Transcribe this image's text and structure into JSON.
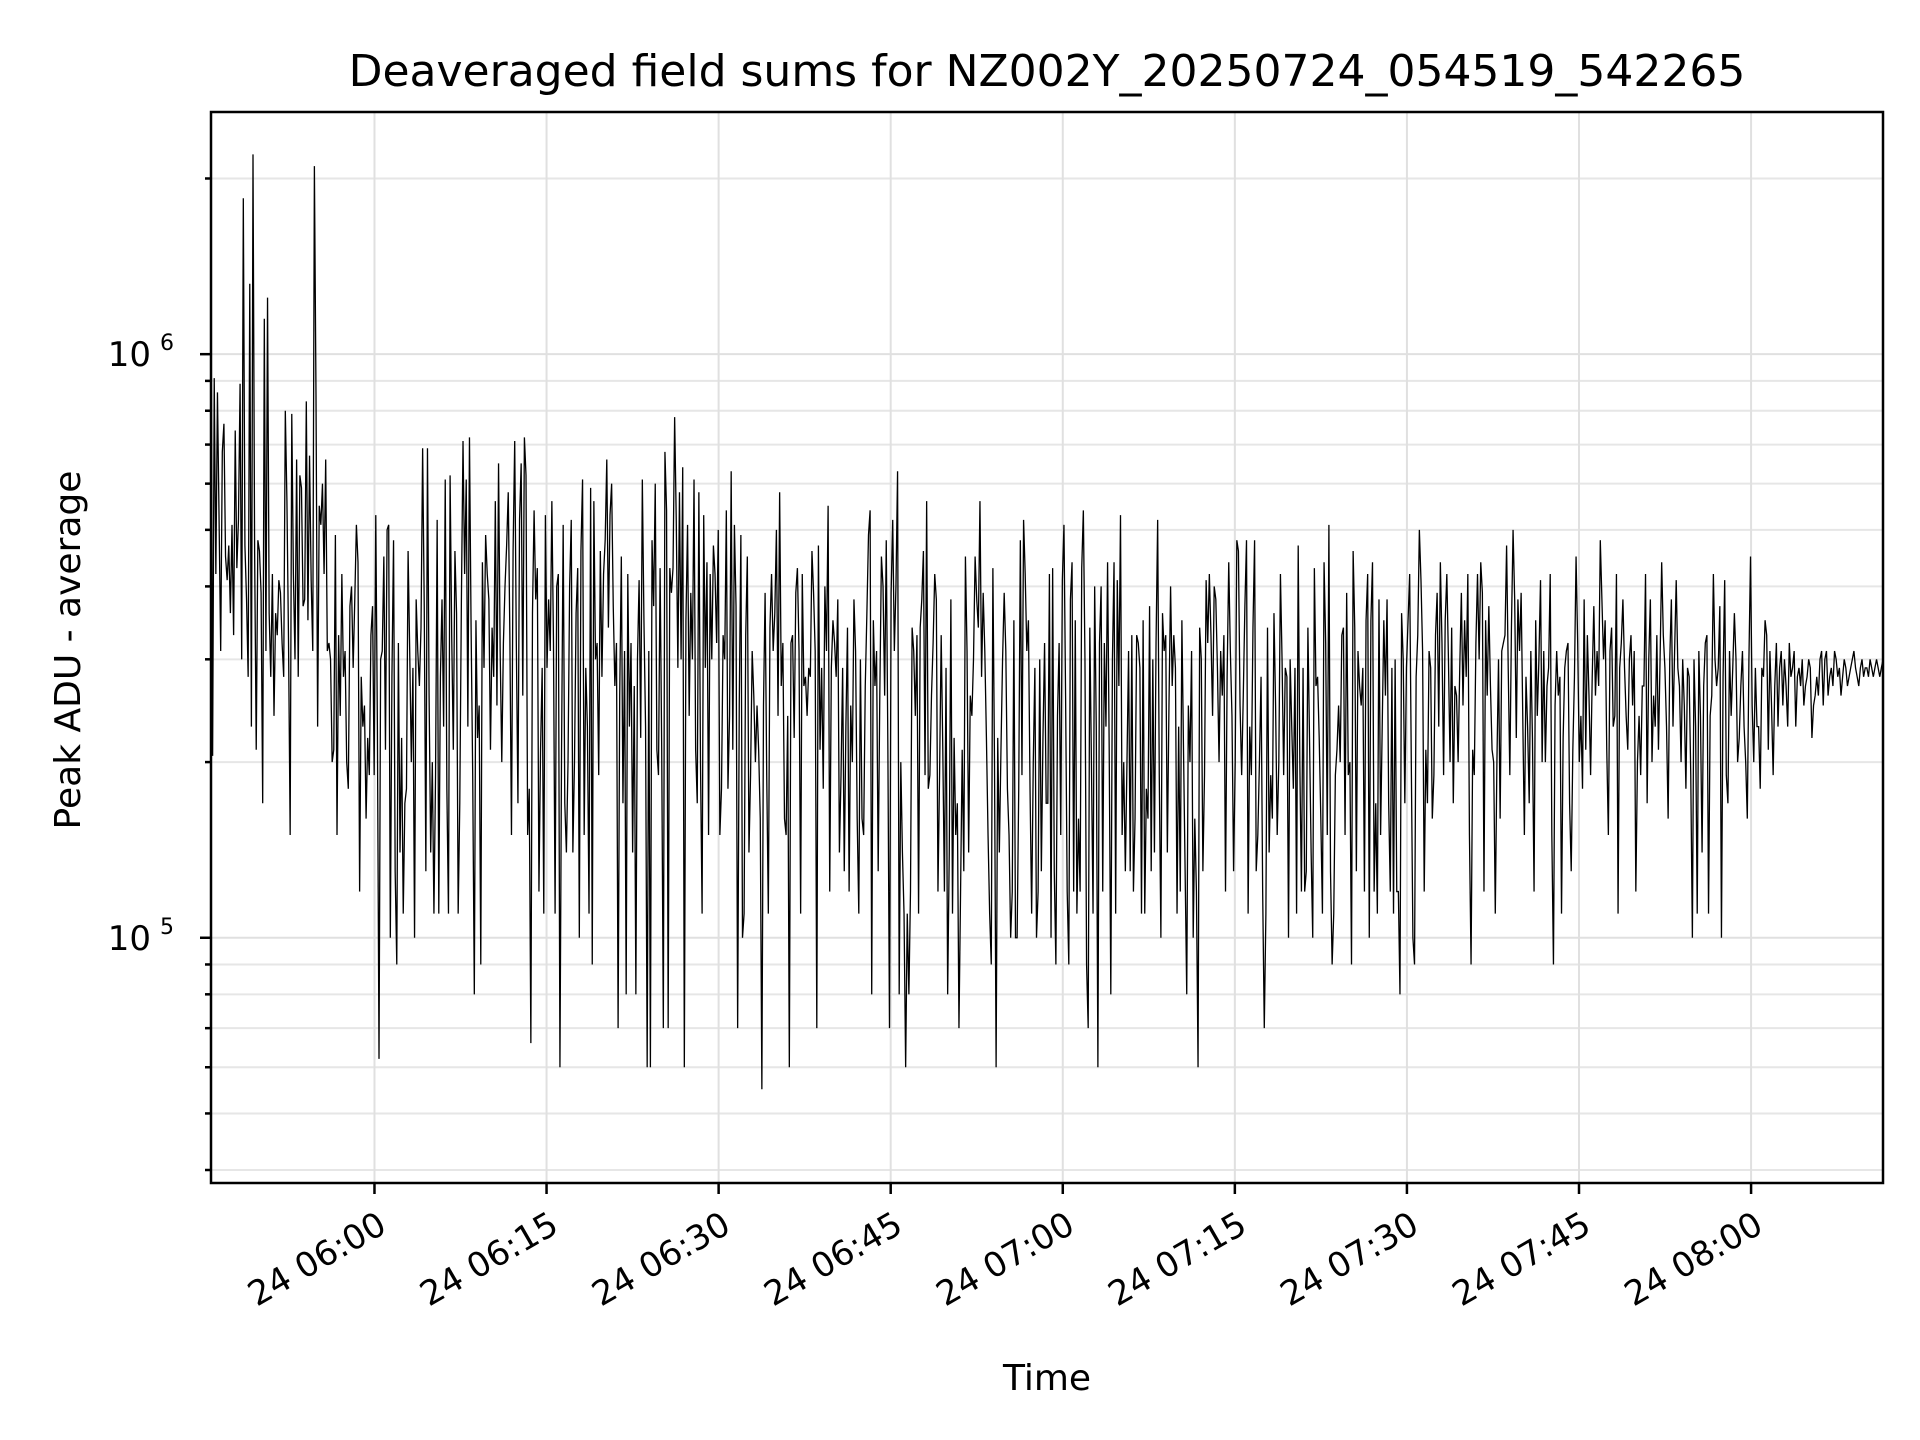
{
  "chart_data": {
    "type": "line",
    "title": "Deaveraged field sums for NZ002Y_20250724_054519_542265",
    "xlabel": "Time",
    "ylabel": "Peak ADU - average",
    "xaxis": {
      "kind": "datetime",
      "range": [
        "2025-07-24 05:45:45",
        "2025-07-24 08:11:30"
      ],
      "tick_labels": [
        "24 06:00",
        "24 06:15",
        "24 06:30",
        "24 06:45",
        "24 07:00",
        "24 07:15",
        "24 07:30",
        "24 07:45",
        "24 08:00"
      ],
      "tick_values": [
        "2025-07-24 06:00:00",
        "2025-07-24 06:15:00",
        "2025-07-24 06:30:00",
        "2025-07-24 06:45:00",
        "2025-07-24 07:00:00",
        "2025-07-24 07:15:00",
        "2025-07-24 07:30:00",
        "2025-07-24 07:45:00",
        "2025-07-24 08:00:00"
      ]
    },
    "yaxis": {
      "scale": "log",
      "range": [
        38000,
        2600000
      ],
      "ticks": [
        {
          "base": "10",
          "exp": "5",
          "value": 100000
        },
        {
          "base": "10",
          "exp": "6",
          "value": 1000000
        }
      ]
    },
    "grid": true,
    "series": [
      {
        "color": "#000000",
        "x_start": "2025-07-24 05:45:45",
        "x_end": "2025-07-24 08:11:30",
        "values": [
          1400000,
          205000,
          910000,
          420000,
          860000,
          520000,
          310000,
          680000,
          760000,
          450000,
          410000,
          470000,
          360000,
          510000,
          330000,
          740000,
          430000,
          520000,
          890000,
          300000,
          1850000,
          470000,
          380000,
          280000,
          1320000,
          230000,
          2200000,
          460000,
          210000,
          480000,
          460000,
          390000,
          170000,
          1150000,
          310000,
          1250000,
          360000,
          280000,
          420000,
          240000,
          360000,
          330000,
          410000,
          390000,
          320000,
          280000,
          800000,
          560000,
          320000,
          150000,
          790000,
          420000,
          300000,
          660000,
          280000,
          620000,
          590000,
          370000,
          380000,
          830000,
          350000,
          670000,
          410000,
          310000,
          2100000,
          850000,
          230000,
          550000,
          510000,
          600000,
          420000,
          660000,
          310000,
          320000,
          300000,
          200000,
          210000,
          490000,
          150000,
          330000,
          240000,
          420000,
          280000,
          310000,
          200000,
          180000,
          370000,
          400000,
          290000,
          380000,
          510000,
          440000,
          120000,
          280000,
          230000,
          250000,
          160000,
          220000,
          190000,
          330000,
          370000,
          190000,
          530000,
          230000,
          62000,
          300000,
          310000,
          450000,
          210000,
          500000,
          510000,
          100000,
          280000,
          480000,
          130000,
          90000,
          320000,
          140000,
          220000,
          110000,
          170000,
          180000,
          460000,
          310000,
          200000,
          290000,
          100000,
          380000,
          310000,
          270000,
          340000,
          690000,
          370000,
          130000,
          690000,
          260000,
          140000,
          200000,
          110000,
          190000,
          520000,
          110000,
          280000,
          380000,
          230000,
          610000,
          180000,
          110000,
          620000,
          330000,
          210000,
          460000,
          360000,
          110000,
          170000,
          380000,
          710000,
          420000,
          610000,
          230000,
          720000,
          340000,
          190000,
          80000,
          350000,
          220000,
          250000,
          90000,
          440000,
          290000,
          490000,
          420000,
          380000,
          210000,
          340000,
          280000,
          560000,
          250000,
          650000,
          310000,
          200000,
          320000,
          400000,
          470000,
          580000,
          330000,
          150000,
          460000,
          710000,
          320000,
          170000,
          520000,
          650000,
          260000,
          720000,
          620000,
          150000,
          180000,
          66000,
          360000,
          540000,
          380000,
          430000,
          120000,
          210000,
          290000,
          110000,
          530000,
          290000,
          380000,
          310000,
          560000,
          320000,
          110000,
          400000,
          420000,
          60000,
          210000,
          510000,
          170000,
          140000,
          200000,
          400000,
          520000,
          140000,
          200000,
          360000,
          430000,
          100000,
          460000,
          610000,
          150000,
          290000,
          230000,
          110000,
          590000,
          90000,
          560000,
          300000,
          320000,
          190000,
          460000,
          280000,
          420000,
          480000,
          660000,
          340000,
          530000,
          600000,
          370000,
          270000,
          320000,
          70000,
          260000,
          450000,
          170000,
          310000,
          80000,
          420000,
          230000,
          320000,
          140000,
          270000,
          80000,
          300000,
          410000,
          220000,
          610000,
          350000,
          230000,
          60000,
          310000,
          60000,
          480000,
          370000,
          600000,
          210000,
          190000,
          430000,
          210000,
          70000,
          680000,
          540000,
          70000,
          430000,
          390000,
          430000,
          780000,
          520000,
          290000,
          580000,
          300000,
          640000,
          60000,
          350000,
          510000,
          240000,
          390000,
          300000,
          610000,
          210000,
          170000,
          580000,
          200000,
          110000,
          530000,
          290000,
          440000,
          150000,
          420000,
          300000,
          470000,
          420000,
          320000,
          500000,
          150000,
          180000,
          330000,
          300000,
          540000,
          180000,
          240000,
          630000,
          210000,
          510000,
          370000,
          70000,
          250000,
          490000,
          100000,
          110000,
          330000,
          450000,
          140000,
          190000,
          310000,
          260000,
          200000,
          250000,
          210000,
          160000,
          55000,
          250000,
          390000,
          190000,
          110000,
          340000,
          420000,
          310000,
          360000,
          500000,
          240000,
          580000,
          270000,
          320000,
          160000,
          150000,
          240000,
          60000,
          320000,
          330000,
          220000,
          390000,
          430000,
          310000,
          110000,
          420000,
          270000,
          280000,
          240000,
          290000,
          280000,
          460000,
          390000,
          310000,
          70000,
          470000,
          210000,
          290000,
          180000,
          400000,
          310000,
          550000,
          120000,
          290000,
          350000,
          320000,
          280000,
          380000,
          140000,
          190000,
          290000,
          130000,
          230000,
          340000,
          120000,
          250000,
          200000,
          380000,
          310000,
          160000,
          110000,
          300000,
          160000,
          150000,
          270000,
          360000,
          490000,
          540000,
          80000,
          350000,
          270000,
          310000,
          130000,
          260000,
          450000,
          400000,
          260000,
          480000,
          210000,
          70000,
          390000,
          520000,
          310000,
          400000,
          630000,
          80000,
          200000,
          140000,
          110000,
          60000,
          110000,
          80000,
          120000,
          340000,
          310000,
          240000,
          330000,
          110000,
          340000,
          380000,
          460000,
          190000,
          560000,
          180000,
          190000,
          260000,
          320000,
          420000,
          380000,
          120000,
          190000,
          330000,
          210000,
          120000,
          290000,
          80000,
          140000,
          380000,
          110000,
          220000,
          150000,
          170000,
          70000,
          120000,
          210000,
          130000,
          450000,
          310000,
          140000,
          260000,
          240000,
          300000,
          450000,
          380000,
          340000,
          560000,
          280000,
          390000,
          310000,
          220000,
          150000,
          110000,
          90000,
          430000,
          200000,
          60000,
          220000,
          140000,
          210000,
          300000,
          390000,
          310000,
          180000,
          150000,
          100000,
          120000,
          350000,
          100000,
          100000,
          180000,
          480000,
          190000,
          520000,
          420000,
          310000,
          350000,
          180000,
          110000,
          200000,
          290000,
          100000,
          120000,
          300000,
          130000,
          220000,
          320000,
          170000,
          170000,
          420000,
          100000,
          430000,
          130000,
          90000,
          240000,
          320000,
          150000,
          410000,
          510000,
          260000,
          120000,
          90000,
          380000,
          440000,
          120000,
          350000,
          110000,
          160000,
          120000,
          430000,
          540000,
          300000,
          90000,
          70000,
          340000,
          200000,
          110000,
          400000,
          230000,
          60000,
          320000,
          400000,
          120000,
          320000,
          230000,
          440000,
          210000,
          80000,
          300000,
          440000,
          110000,
          410000,
          270000,
          530000,
          150000,
          200000,
          130000,
          200000,
          310000,
          130000,
          330000,
          120000,
          160000,
          330000,
          320000,
          290000,
          110000,
          350000,
          110000,
          180000,
          160000,
          370000,
          130000,
          300000,
          140000,
          320000,
          520000,
          190000,
          100000,
          360000,
          310000,
          330000,
          140000,
          250000,
          400000,
          270000,
          330000,
          290000,
          110000,
          230000,
          120000,
          350000,
          210000,
          130000,
          80000,
          250000,
          200000,
          310000,
          100000,
          160000,
          120000,
          60000,
          340000,
          300000,
          130000,
          190000,
          410000,
          320000,
          420000,
          330000,
          240000,
          400000,
          380000,
          290000,
          200000,
          310000,
          260000,
          330000,
          120000,
          280000,
          440000,
          310000,
          240000,
          130000,
          200000,
          480000,
          460000,
          250000,
          190000,
          260000,
          370000,
          480000,
          110000,
          230000,
          190000,
          340000,
          480000,
          130000,
          150000,
          200000,
          280000,
          120000,
          70000,
          110000,
          340000,
          140000,
          190000,
          160000,
          360000,
          250000,
          150000,
          200000,
          420000,
          300000,
          190000,
          290000,
          280000,
          100000,
          300000,
          230000,
          180000,
          290000,
          110000,
          470000,
          200000,
          120000,
          290000,
          120000,
          130000,
          340000,
          220000,
          140000,
          100000,
          430000,
          270000,
          280000,
          220000,
          160000,
          110000,
          440000,
          320000,
          150000,
          510000,
          130000,
          90000,
          110000,
          190000,
          210000,
          250000,
          200000,
          330000,
          340000,
          150000,
          390000,
          190000,
          200000,
          90000,
          460000,
          340000,
          130000,
          310000,
          270000,
          250000,
          290000,
          120000,
          350000,
          420000,
          100000,
          350000,
          440000,
          120000,
          170000,
          110000,
          380000,
          150000,
          230000,
          350000,
          260000,
          380000,
          170000,
          120000,
          290000,
          110000,
          300000,
          120000,
          120000,
          80000,
          360000,
          300000,
          170000,
          290000,
          350000,
          420000,
          200000,
          100000,
          90000,
          280000,
          330000,
          500000,
          410000,
          310000,
          120000,
          210000,
          170000,
          310000,
          290000,
          160000,
          190000,
          330000,
          390000,
          230000,
          440000,
          320000,
          190000,
          350000,
          420000,
          300000,
          200000,
          340000,
          170000,
          270000,
          260000,
          200000,
          290000,
          390000,
          250000,
          350000,
          280000,
          420000,
          150000,
          90000,
          210000,
          190000,
          320000,
          420000,
          300000,
          440000,
          390000,
          120000,
          350000,
          260000,
          370000,
          270000,
          210000,
          200000,
          110000,
          200000,
          300000,
          160000,
          310000,
          320000,
          330000,
          470000,
          290000,
          190000,
          340000,
          500000,
          380000,
          220000,
          380000,
          310000,
          390000,
          240000,
          150000,
          280000,
          230000,
          170000,
          310000,
          220000,
          120000,
          350000,
          240000,
          300000,
          410000,
          200000,
          310000,
          200000,
          270000,
          290000,
          420000,
          150000,
          90000,
          250000,
          310000,
          260000,
          280000,
          110000,
          220000,
          290000,
          310000,
          320000,
          170000,
          130000,
          210000,
          280000,
          450000,
          320000,
          200000,
          240000,
          180000,
          380000,
          210000,
          330000,
          260000,
          190000,
          280000,
          370000,
          260000,
          310000,
          270000,
          480000,
          380000,
          300000,
          350000,
          210000,
          150000,
          310000,
          340000,
          230000,
          240000,
          420000,
          110000,
          290000,
          320000,
          380000,
          290000,
          240000,
          210000,
          300000,
          330000,
          250000,
          310000,
          120000,
          200000,
          240000,
          190000,
          270000,
          270000,
          420000,
          170000,
          300000,
          380000,
          200000,
          260000,
          230000,
          330000,
          210000,
          300000,
          440000,
          330000,
          290000,
          230000,
          160000,
          300000,
          380000,
          230000,
          310000,
          410000,
          290000,
          270000,
          200000,
          300000,
          250000,
          180000,
          290000,
          280000,
          190000,
          100000,
          300000,
          230000,
          110000,
          310000,
          240000,
          140000,
          270000,
          320000,
          330000,
          110000,
          240000,
          260000,
          420000,
          300000,
          270000,
          290000,
          370000,
          100000,
          280000,
          410000,
          190000,
          170000,
          310000,
          240000,
          290000,
          360000,
          300000,
          200000,
          220000,
          270000,
          310000,
          230000,
          200000,
          160000,
          300000,
          450000,
          250000,
          200000,
          290000,
          230000,
          230000,
          180000,
          290000,
          280000,
          350000,
          330000,
          210000,
          310000,
          250000,
          190000,
          270000,
          320000,
          230000,
          290000,
          310000,
          250000,
          300000,
          270000,
          230000,
          320000,
          280000,
          290000,
          310000,
          230000,
          280000,
          290000,
          270000,
          300000,
          250000,
          270000,
          280000,
          300000,
          290000,
          220000,
          250000,
          260000,
          280000,
          260000,
          300000,
          310000,
          250000,
          300000,
          310000,
          260000,
          280000,
          290000,
          270000,
          310000,
          300000,
          280000,
          290000,
          260000,
          280000,
          300000,
          290000,
          270000,
          280000,
          290000,
          300000,
          310000,
          290000,
          280000,
          270000,
          290000,
          300000,
          280000,
          290000,
          290000,
          280000,
          300000,
          290000,
          280000,
          290000,
          300000,
          290000,
          280000,
          290000,
          300000
        ]
      }
    ]
  }
}
